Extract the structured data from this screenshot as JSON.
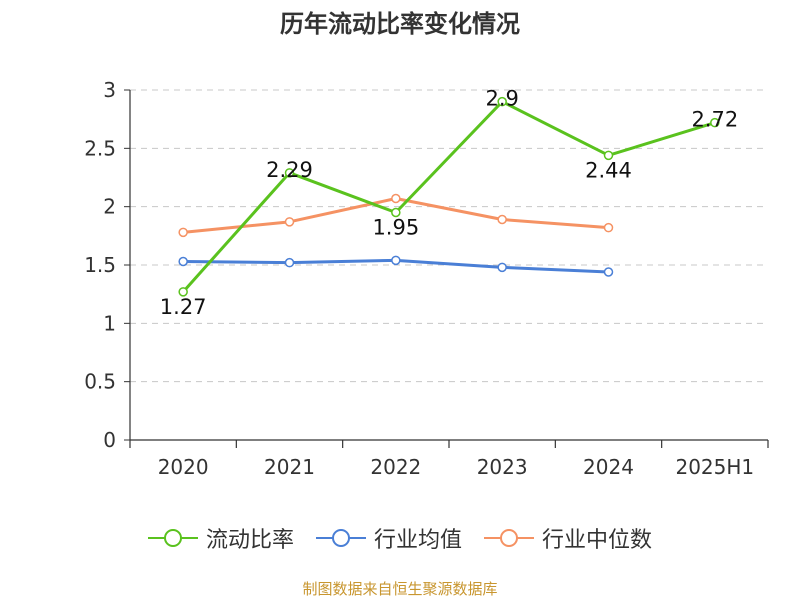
{
  "title": "历年流动比率变化情况",
  "source": "制图数据来自恒生聚源数据库",
  "colors": {
    "current_ratio": "#5ac21e",
    "industry_mean": "#4a7fd6",
    "industry_median": "#f59263",
    "grid": "#c8c8c8",
    "axis": "#333333"
  },
  "chart_data": {
    "type": "line",
    "title": "历年流动比率变化情况",
    "categories": [
      "2020",
      "2021",
      "2022",
      "2023",
      "2024",
      "2025H1"
    ],
    "ylim": [
      0,
      3
    ],
    "yticks": [
      0,
      0.5,
      1,
      1.5,
      2,
      2.5,
      3
    ],
    "ytick_labels": [
      "0",
      "0.5",
      "1",
      "1.5",
      "2",
      "2.5",
      "3"
    ],
    "grid": "horizontal dashed",
    "legend_position": "bottom",
    "series": [
      {
        "name": "流动比率",
        "color_key": "current_ratio",
        "labels": true,
        "values": [
          1.27,
          2.29,
          1.95,
          2.9,
          2.44,
          2.72
        ],
        "value_labels": [
          "1.27",
          "2.29",
          "1.95",
          "2.9",
          "2.44",
          "2.72"
        ]
      },
      {
        "name": "行业均值",
        "color_key": "industry_mean",
        "labels": false,
        "values": [
          1.53,
          1.52,
          1.54,
          1.48,
          1.44,
          null
        ]
      },
      {
        "name": "行业中位数",
        "color_key": "industry_median",
        "labels": false,
        "values": [
          1.78,
          1.87,
          2.07,
          1.89,
          1.82,
          null
        ]
      }
    ]
  }
}
